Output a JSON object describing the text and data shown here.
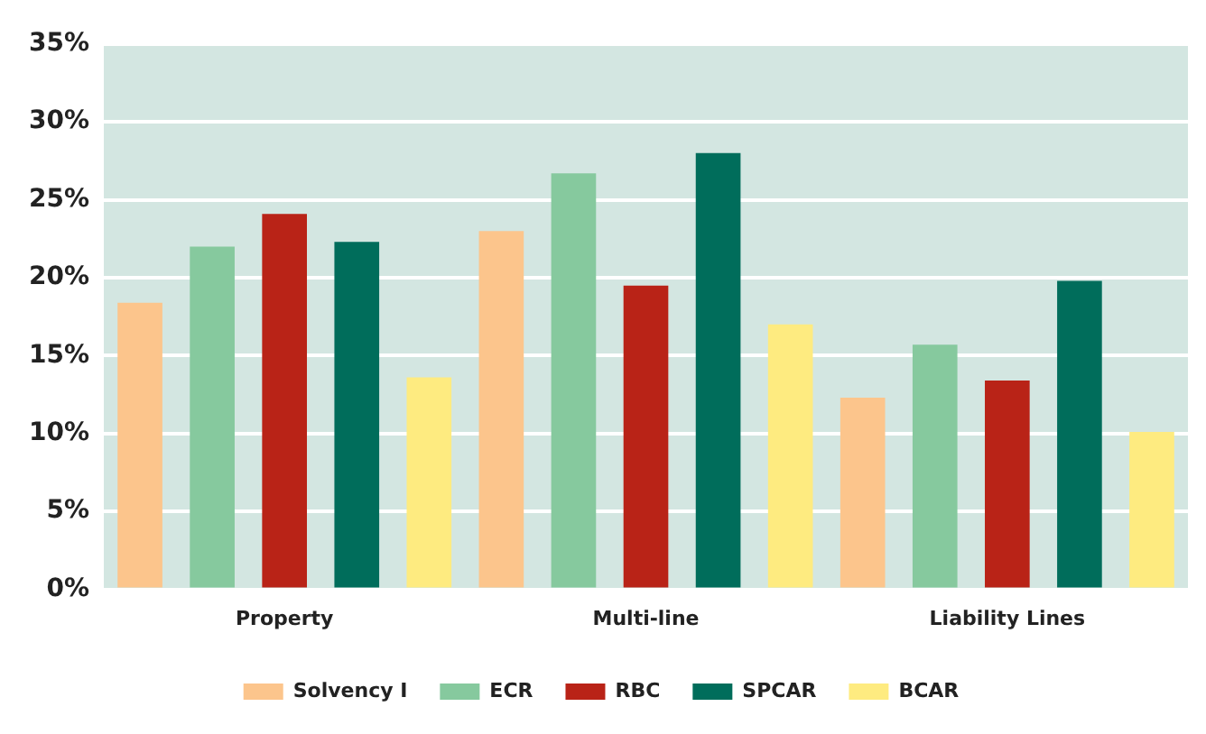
{
  "chart_data": {
    "type": "bar",
    "categories": [
      "Property",
      "Multi-line",
      "Liability Lines"
    ],
    "series": [
      {
        "name": "Solvency I",
        "color": "#fcc58c",
        "values": [
          18.4,
          23.0,
          12.3
        ]
      },
      {
        "name": "ECR",
        "color": "#86c99e",
        "values": [
          22.0,
          26.7,
          15.7
        ]
      },
      {
        "name": "RBC",
        "color": "#b92317",
        "values": [
          24.1,
          19.5,
          13.4
        ]
      },
      {
        "name": "SPCAR",
        "color": "#006d5b",
        "values": [
          22.3,
          28.0,
          19.8
        ]
      },
      {
        "name": "BCAR",
        "color": "#feeb80",
        "values": [
          13.6,
          17.0,
          10.1
        ]
      }
    ],
    "ylim": [
      0,
      35
    ],
    "yticks": [
      {
        "value": 0,
        "label": "0%"
      },
      {
        "value": 5,
        "label": "5%"
      },
      {
        "value": 10,
        "label": "10%"
      },
      {
        "value": 15,
        "label": "15%"
      },
      {
        "value": 20,
        "label": "20%"
      },
      {
        "value": 25,
        "label": "25%"
      },
      {
        "value": 30,
        "label": "30%"
      },
      {
        "value": 35,
        "label": "35%"
      }
    ],
    "grid": "y",
    "legend": "bottom"
  }
}
